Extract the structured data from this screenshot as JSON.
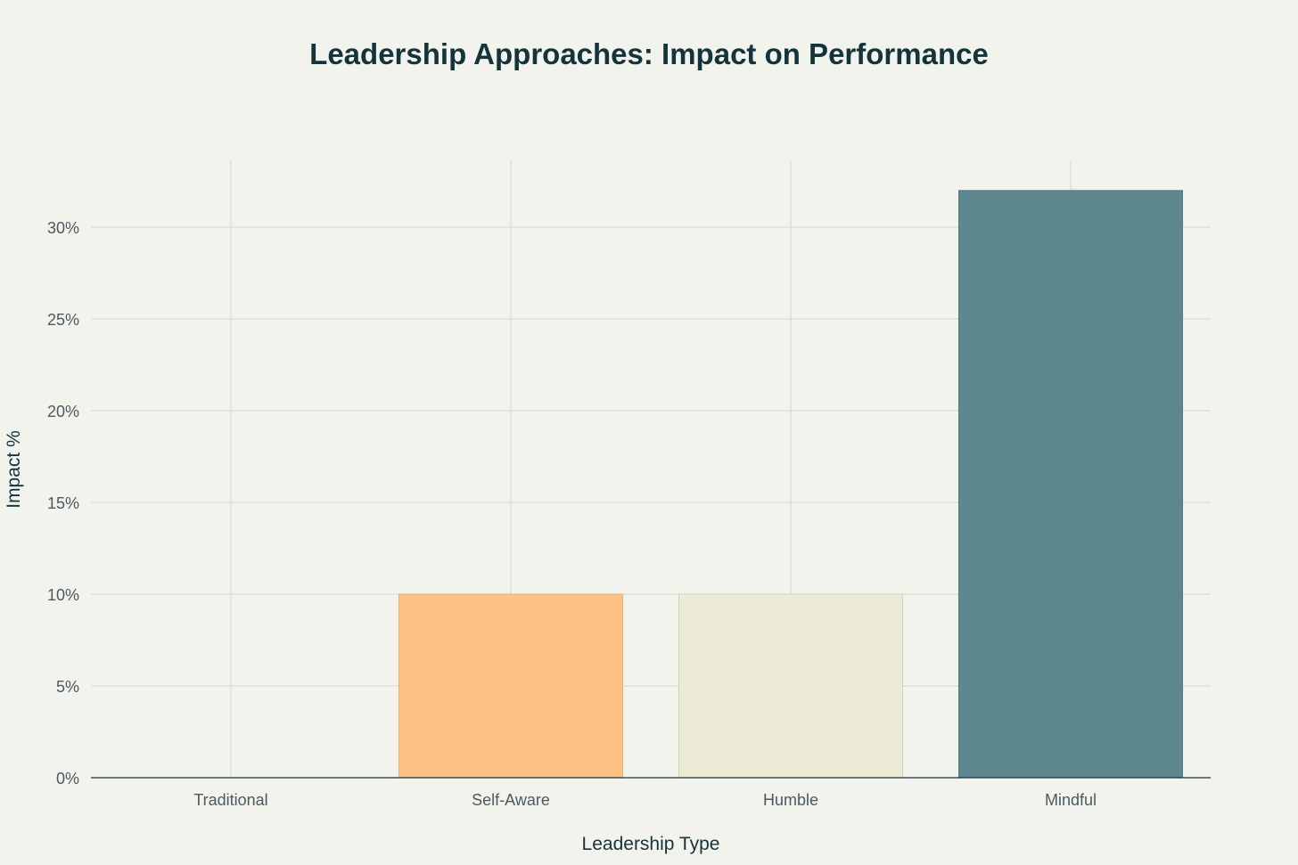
{
  "chart_data": {
    "type": "bar",
    "title": "Leadership Approaches: Impact on Performance",
    "xlabel": "Leadership Type",
    "ylabel": "Impact %",
    "categories": [
      "Traditional",
      "Self-Aware",
      "Humble",
      "Mindful"
    ],
    "values": [
      0,
      10,
      10,
      32
    ],
    "colors": [
      "#d8d8d2",
      "#ffc185",
      "#ecebd5",
      "#5d878f"
    ],
    "bar_outline_colors": [
      "#bdbdb6",
      "#e6b07a",
      "#d2d0b8",
      "#537b83"
    ],
    "ylim": [
      0,
      34
    ],
    "yticks": [
      0,
      5,
      10,
      15,
      20,
      25,
      30
    ],
    "ytick_labels": [
      "0%",
      "5%",
      "10%",
      "15%",
      "20%",
      "25%",
      "30%"
    ],
    "grid": true,
    "legend": "none",
    "background": "#f3f3ee",
    "text_color": "#13343b"
  }
}
